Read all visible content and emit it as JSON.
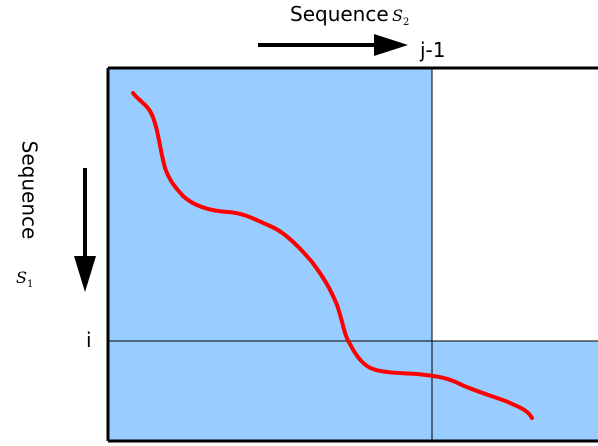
{
  "labels": {
    "seq_top_word": "Sequence",
    "seq_top_symbol": "S",
    "seq_top_sub": "2",
    "seq_left_word": "Sequence",
    "seq_left_symbol": "S",
    "seq_left_sub": "1",
    "col_marker": "j-1",
    "row_marker": "i"
  },
  "colors": {
    "filled_region": "#99ccff",
    "path": "#ff0000",
    "lines": "#000000",
    "empty_region": "#ffffff"
  }
}
